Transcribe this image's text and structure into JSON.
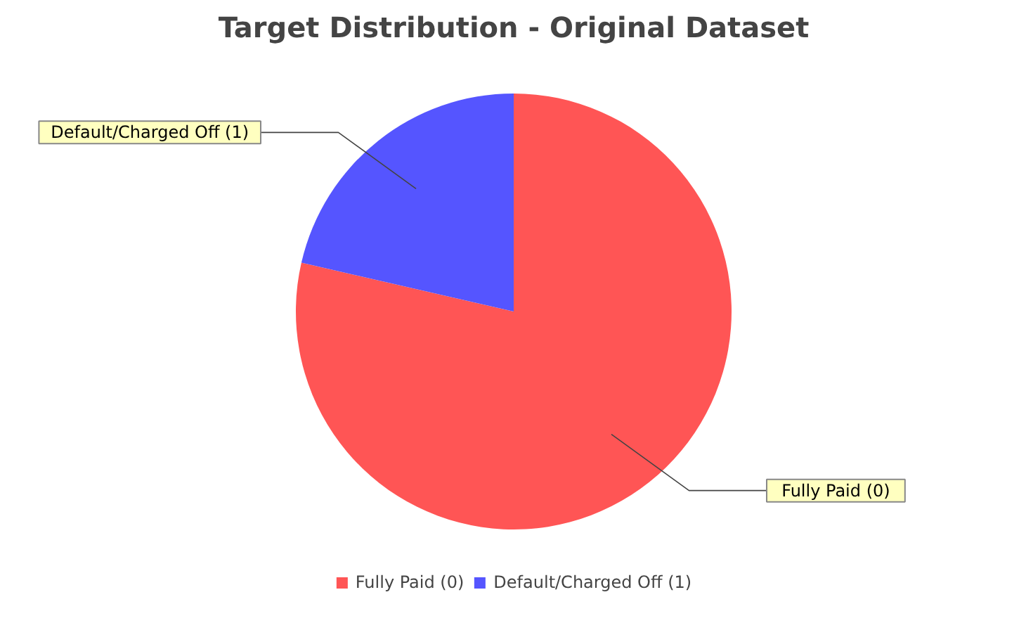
{
  "chart_data": {
    "type": "pie",
    "title": "Target Distribution - Original Dataset",
    "categories": [
      "Fully Paid (0)",
      "Default/Charged Off (1)"
    ],
    "values": [
      78.6,
      21.4
    ],
    "colors": [
      "#ff5555",
      "#5555ff"
    ],
    "legend": "bottom"
  }
}
